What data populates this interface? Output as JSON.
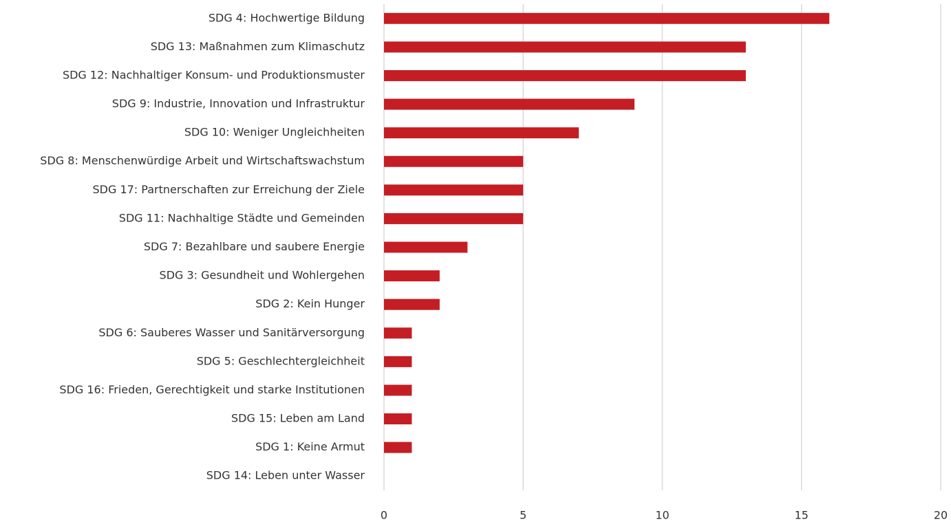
{
  "chart_data": {
    "type": "barh",
    "categories": [
      "SDG 4: Hochwertige Bildung",
      "SDG 13: Maßnahmen zum Klimaschutz",
      "SDG 12: Nachhaltiger Konsum- und Produktionsmuster",
      "SDG 9: Industrie, Innovation und Infrastruktur",
      "SDG 10: Weniger Ungleichheiten",
      "SDG 8: Menschenwürdige Arbeit und Wirtschaftswachstum",
      "SDG 17: Partnerschaften zur Erreichung der Ziele",
      "SDG 11: Nachhaltige Städte und Gemeinden",
      "SDG 7: Bezahlbare und saubere Energie",
      "SDG 3: Gesundheit und Wohlergehen",
      "SDG 2: Kein Hunger",
      "SDG 6: Sauberes Wasser und Sanitärversorgung",
      "SDG 5: Geschlechtergleichheit",
      "SDG 16: Frieden, Gerechtigkeit und starke Institutionen",
      "SDG 15: Leben am Land",
      "SDG 1: Keine Armut",
      "SDG 14: Leben unter Wasser"
    ],
    "values": [
      16,
      13,
      13,
      9,
      7,
      5,
      5,
      5,
      3,
      2,
      2,
      1,
      1,
      1,
      1,
      1,
      0
    ],
    "color": "#c41e24",
    "xlim": [
      0,
      20
    ],
    "xticks": [
      0,
      5,
      10,
      15,
      20
    ],
    "grid": true
  }
}
